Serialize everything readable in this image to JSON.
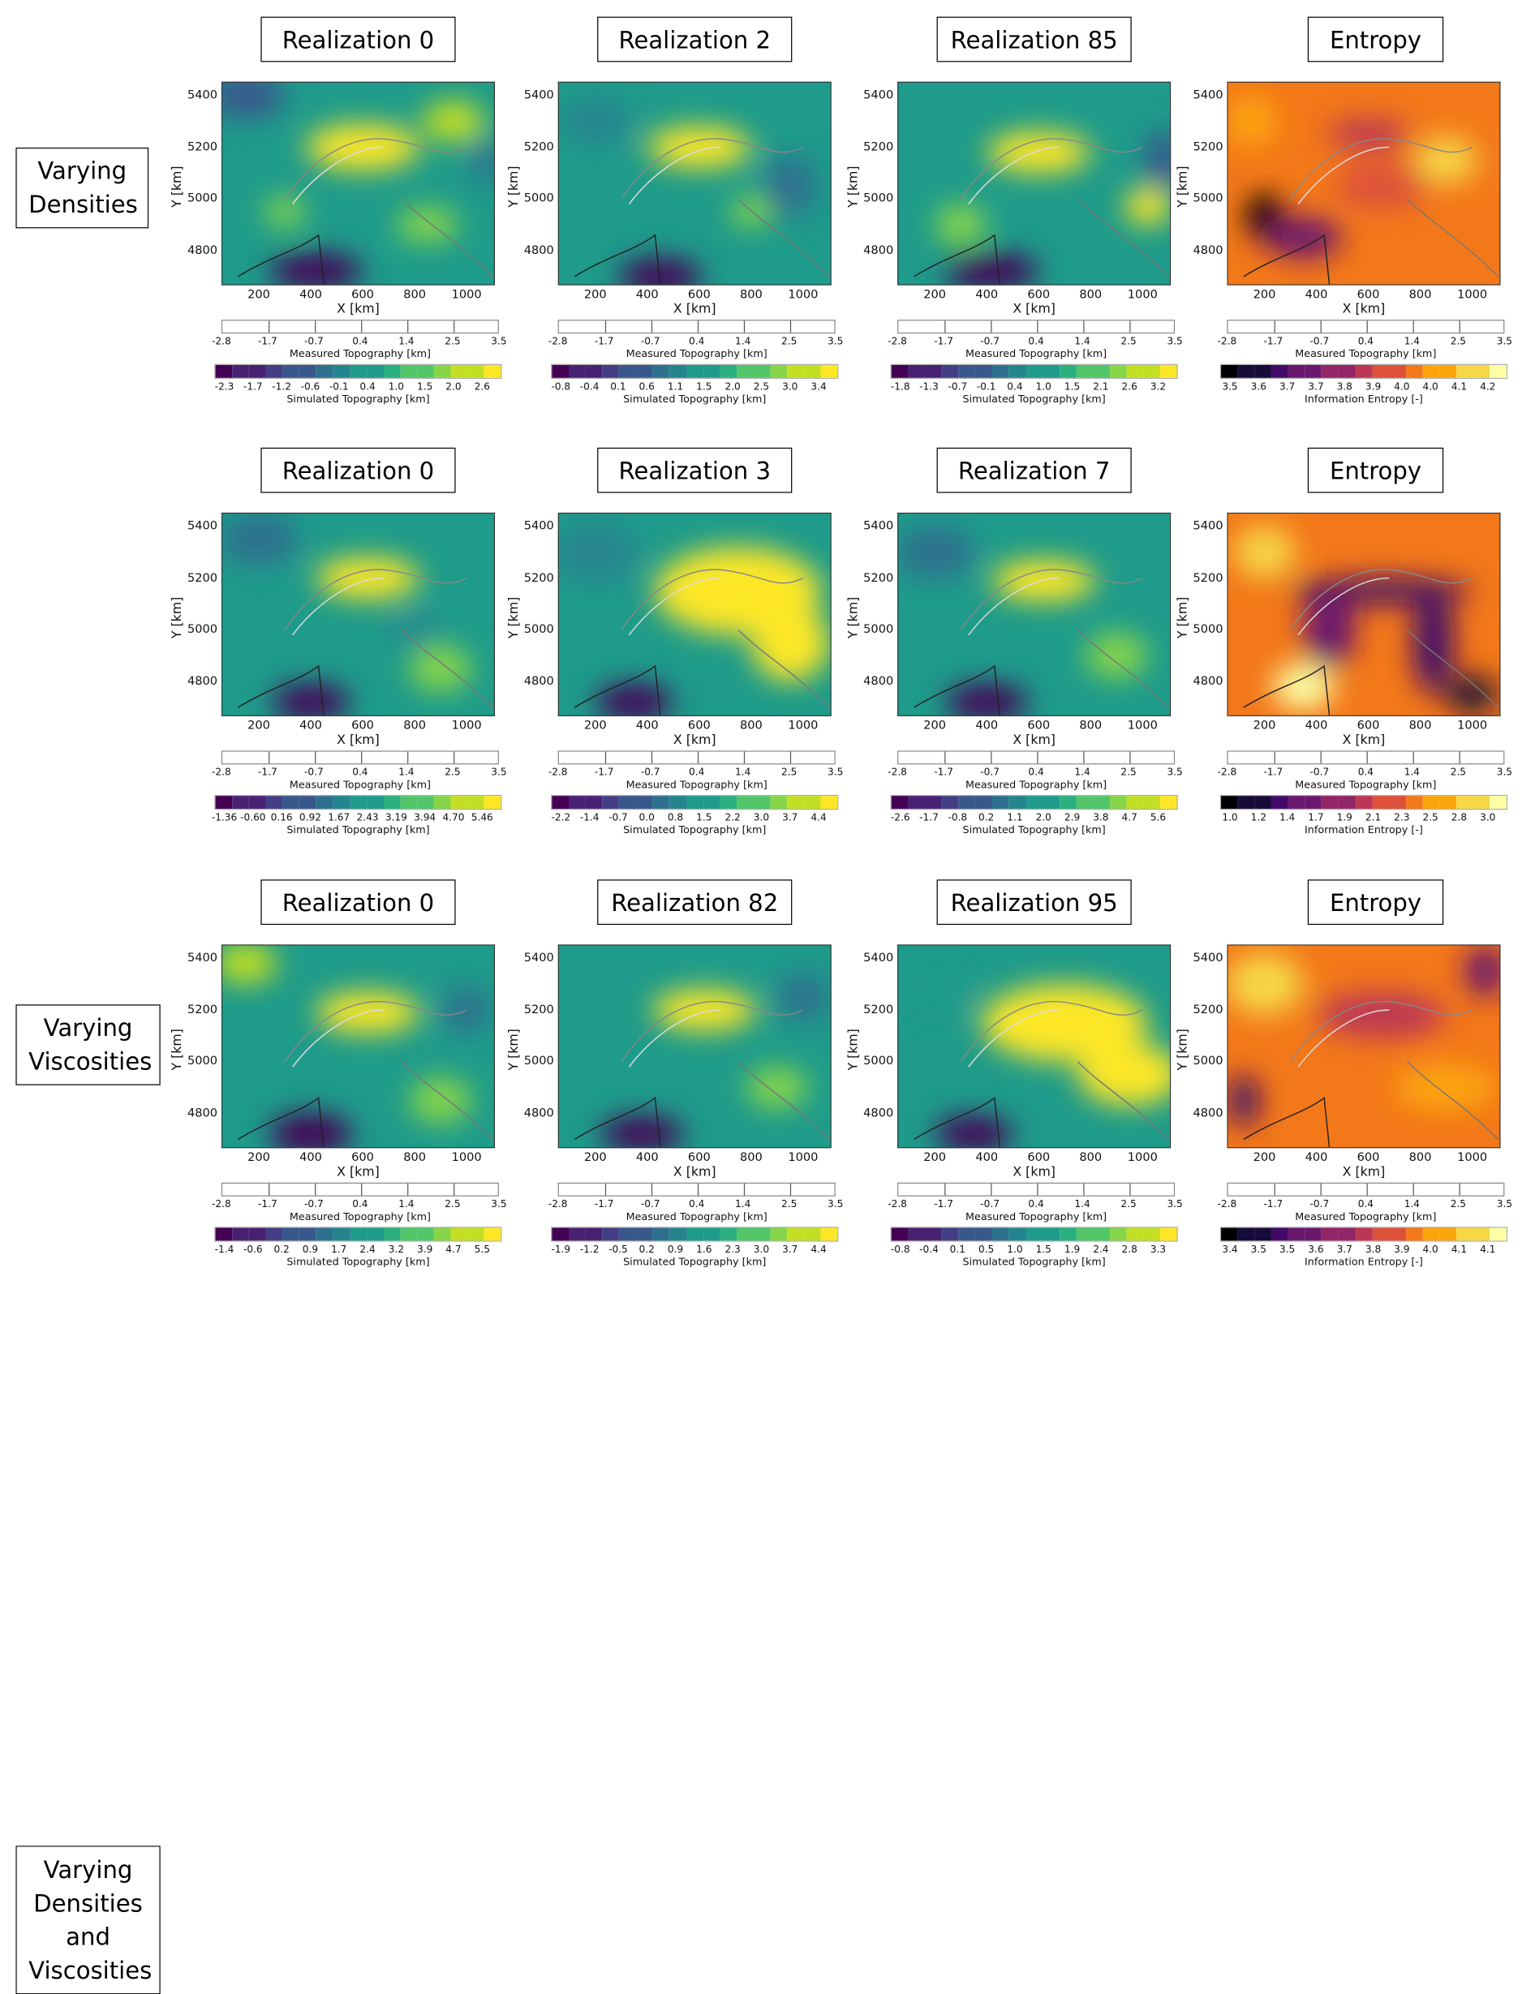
{
  "chart_data": [
    {
      "type": "heatmap",
      "row": "Varying Densities",
      "title": "Realization 0",
      "colormap": "viridis",
      "cbar_label": "Simulated Topography [km]",
      "cbar_ticks": [
        "-2.3",
        "-1.7",
        "-1.2",
        "-0.6",
        "-0.1",
        "0.4",
        "1.0",
        "1.5",
        "2.0",
        "2.6"
      ]
    },
    {
      "type": "heatmap",
      "row": "Varying Densities",
      "title": "Realization 2",
      "colormap": "viridis",
      "cbar_label": "Simulated Topography [km]",
      "cbar_ticks": [
        "-0.8",
        "-0.4",
        "0.1",
        "0.6",
        "1.1",
        "1.5",
        "2.0",
        "2.5",
        "3.0",
        "3.4"
      ]
    },
    {
      "type": "heatmap",
      "row": "Varying Densities",
      "title": "Realization 85",
      "colormap": "viridis",
      "cbar_label": "Simulated Topography [km]",
      "cbar_ticks": [
        "-1.8",
        "-1.3",
        "-0.7",
        "-0.1",
        "0.4",
        "1.0",
        "1.5",
        "2.1",
        "2.6",
        "3.2"
      ]
    },
    {
      "type": "heatmap",
      "row": "Varying Densities",
      "title": "Entropy",
      "colormap": "inferno",
      "cbar_label": "Information Entropy [-]",
      "cbar_ticks": [
        "3.5",
        "3.6",
        "3.7",
        "3.7",
        "3.8",
        "3.9",
        "4.0",
        "4.0",
        "4.1",
        "4.2"
      ]
    },
    {
      "type": "heatmap",
      "row": "Varying Viscosities",
      "title": "Realization 0",
      "colormap": "viridis",
      "cbar_label": "Simulated Topography [km]",
      "cbar_ticks": [
        "-1.36",
        "-0.60",
        "0.16",
        "0.92",
        "1.67",
        "2.43",
        "3.19",
        "3.94",
        "4.70",
        "5.46"
      ]
    },
    {
      "type": "heatmap",
      "row": "Varying Viscosities",
      "title": "Realization 3",
      "colormap": "viridis",
      "cbar_label": "Simulated Topography [km]",
      "cbar_ticks": [
        "-2.2",
        "-1.4",
        "-0.7",
        "0.0",
        "0.8",
        "1.5",
        "2.2",
        "3.0",
        "3.7",
        "4.4"
      ]
    },
    {
      "type": "heatmap",
      "row": "Varying Viscosities",
      "title": "Realization 7",
      "colormap": "viridis",
      "cbar_label": "Simulated Topography [km]",
      "cbar_ticks": [
        "-2.6",
        "-1.7",
        "-0.8",
        "0.2",
        "1.1",
        "2.0",
        "2.9",
        "3.8",
        "4.7",
        "5.6"
      ]
    },
    {
      "type": "heatmap",
      "row": "Varying Viscosities",
      "title": "Entropy",
      "colormap": "inferno",
      "cbar_label": "Information Entropy [-]",
      "cbar_ticks": [
        "1.0",
        "1.2",
        "1.4",
        "1.7",
        "1.9",
        "2.1",
        "2.3",
        "2.5",
        "2.8",
        "3.0"
      ]
    },
    {
      "type": "heatmap",
      "row": "Varying Densities and Viscosities",
      "title": "Realization 0",
      "colormap": "viridis",
      "cbar_label": "Simulated Topography [km]",
      "cbar_ticks": [
        "-1.4",
        "-0.6",
        "0.2",
        "0.9",
        "1.7",
        "2.4",
        "3.2",
        "3.9",
        "4.7",
        "5.5"
      ]
    },
    {
      "type": "heatmap",
      "row": "Varying Densities and Viscosities",
      "title": "Realization 82",
      "colormap": "viridis",
      "cbar_label": "Simulated Topography [km]",
      "cbar_ticks": [
        "-1.9",
        "-1.2",
        "-0.5",
        "0.2",
        "0.9",
        "1.6",
        "2.3",
        "3.0",
        "3.7",
        "4.4"
      ]
    },
    {
      "type": "heatmap",
      "row": "Varying Densities and Viscosities",
      "title": "Realization 95",
      "colormap": "viridis",
      "cbar_label": "Simulated Topography [km]",
      "cbar_ticks": [
        "-0.8",
        "-0.4",
        "0.1",
        "0.5",
        "1.0",
        "1.5",
        "1.9",
        "2.4",
        "2.8",
        "3.3"
      ]
    },
    {
      "type": "heatmap",
      "row": "Varying Densities and Viscosities",
      "title": "Entropy",
      "colormap": "inferno",
      "cbar_label": "Information Entropy [-]",
      "cbar_ticks": [
        "3.4",
        "3.5",
        "3.5",
        "3.6",
        "3.7",
        "3.8",
        "3.9",
        "4.0",
        "4.1",
        "4.1"
      ]
    }
  ],
  "rows": [
    {
      "label_lines": [
        "Varying",
        "Densities"
      ]
    },
    {
      "label_lines": [
        "Varying",
        "Viscosities"
      ]
    },
    {
      "label_lines": [
        "Varying",
        "Densities",
        "and",
        "Viscosities"
      ]
    }
  ],
  "axes": {
    "xlabel": "X [km]",
    "ylabel": "Y [km]",
    "xticks": [
      "200",
      "400",
      "600",
      "800",
      "1000"
    ],
    "yticks": [
      "5400",
      "5200",
      "5000",
      "4800"
    ],
    "xlim": [
      56,
      1109
    ],
    "ylim": [
      4666,
      5453
    ]
  },
  "measured_cbar": {
    "label": "Measured Topography [km]",
    "ticks": [
      "-2.8",
      "-1.7",
      "-0.7",
      "0.4",
      "1.4",
      "2.5",
      "3.5"
    ]
  },
  "colors": {
    "viridis": [
      "#440154",
      "#482173",
      "#433e85",
      "#38588c",
      "#2d708e",
      "#25858e",
      "#1e9b8a",
      "#2ab07f",
      "#52c569",
      "#86d549",
      "#c2df23",
      "#fde725"
    ],
    "inferno": [
      "#000004",
      "#160b39",
      "#420a68",
      "#6a176e",
      "#932667",
      "#bc3754",
      "#dd513a",
      "#f37819",
      "#fca50a",
      "#f6d746",
      "#fcffa4"
    ]
  }
}
